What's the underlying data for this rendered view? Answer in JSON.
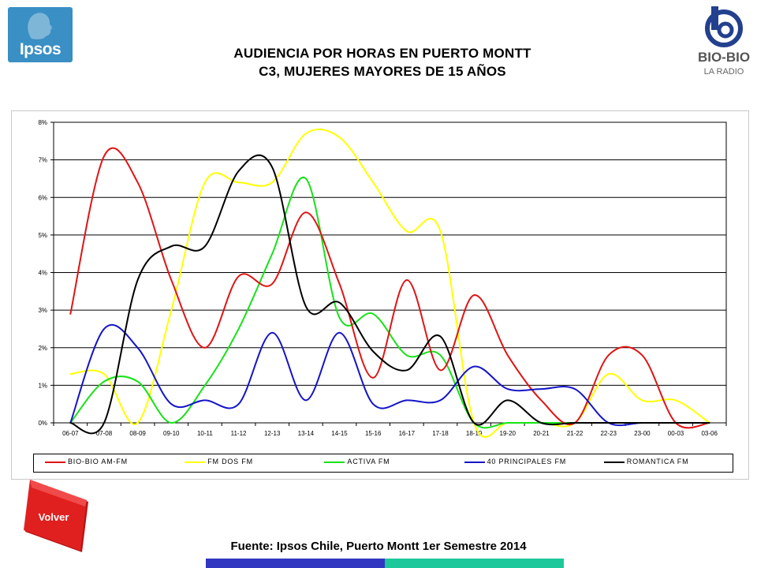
{
  "header": {
    "title_line1": "AUDIENCIA POR HORAS EN PUERTO MONTT",
    "title_line2": "C3, MUJERES MAYORES DE 15 AÑOS",
    "left_logo_text": "Ipsos",
    "right_logo_text": "BIO-BIO",
    "right_logo_subtext": "LA RADIO",
    "left_logo_color": "#3a8fc4"
  },
  "footer": {
    "source": "Fuente: Ipsos Chile, Puerto Montt 1er Semestre 2014",
    "back_button_label": "Volver",
    "back_button_color": "#e0201f",
    "bar_colors": [
      "#3137c1",
      "#1dc99a"
    ]
  },
  "chart_data": {
    "type": "line",
    "title": "",
    "xlabel": "",
    "ylabel": "",
    "ylim": [
      0,
      0.08
    ],
    "y_ticks": [
      "0%",
      "1%",
      "2%",
      "3%",
      "4%",
      "5%",
      "6%",
      "7%",
      "8%"
    ],
    "grid": true,
    "legend_position": "bottom",
    "categories": [
      "06-07",
      "07-08",
      "08-09",
      "09-10",
      "10-11",
      "11-12",
      "12-13",
      "13-14",
      "14-15",
      "15-16",
      "16-17",
      "17-18",
      "18-19",
      "19-20",
      "20-21",
      "21-22",
      "22-23",
      "23-00",
      "00-03",
      "03-06"
    ],
    "series": [
      {
        "name": "BIO-BIO AM-FM",
        "color": "#e01414",
        "values": [
          0.029,
          0.071,
          0.064,
          0.038,
          0.02,
          0.039,
          0.037,
          0.056,
          0.037,
          0.012,
          0.038,
          0.014,
          0.034,
          0.018,
          0.006,
          0.0,
          0.018,
          0.018,
          0.0,
          0.0
        ]
      },
      {
        "name": "FM DOS FM",
        "color": "#ffff00",
        "values": [
          0.013,
          0.013,
          0.0,
          0.03,
          0.064,
          0.064,
          0.064,
          0.077,
          0.076,
          0.064,
          0.051,
          0.051,
          0.0,
          0.0,
          0.0,
          0.0,
          0.013,
          0.006,
          0.006,
          0.0
        ]
      },
      {
        "name": "ACTIVA FM",
        "color": "#17e217",
        "values": [
          0.0,
          0.011,
          0.011,
          0.0,
          0.01,
          0.025,
          0.045,
          0.065,
          0.028,
          0.029,
          0.018,
          0.018,
          0.0,
          0.0,
          0.0,
          0.0,
          0.0,
          0.0,
          0.0,
          0.0
        ]
      },
      {
        "name": "40 PRINCIPALES FM",
        "color": "#1414c8",
        "values": [
          0.0,
          0.025,
          0.02,
          0.005,
          0.006,
          0.005,
          0.024,
          0.006,
          0.024,
          0.005,
          0.006,
          0.006,
          0.015,
          0.009,
          0.009,
          0.009,
          0.0,
          0.0,
          0.0,
          0.0
        ]
      },
      {
        "name": "ROMANTICA FM",
        "color": "#000000",
        "values": [
          0.0,
          0.0,
          0.038,
          0.047,
          0.047,
          0.067,
          0.068,
          0.031,
          0.032,
          0.019,
          0.014,
          0.023,
          0.0,
          0.006,
          0.0,
          0.0,
          0.0,
          0.0,
          0.0,
          0.0
        ]
      }
    ]
  }
}
